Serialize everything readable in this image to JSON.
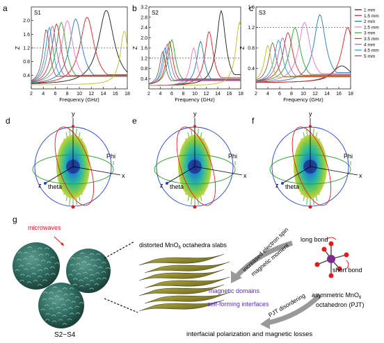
{
  "panel_letters": [
    "a",
    "b",
    "c",
    "d",
    "e",
    "f",
    "g"
  ],
  "colors": [
    "#1a1a1a",
    "#e41a1c",
    "#1f77b4",
    "#e377c2",
    "#2ca02c",
    "#d62728",
    "#9467bd",
    "#1f9bd7",
    "#8c564b",
    "#bcbd22"
  ],
  "chart_data": [
    {
      "type": "line",
      "title": "S1",
      "xlabel": "Frequency (GHz)",
      "ylabel": "Z",
      "xlim": [
        2,
        18
      ],
      "ylim": [
        0,
        2.4
      ],
      "xticks": [
        2,
        4,
        6,
        8,
        10,
        12,
        14,
        16,
        18
      ],
      "xtick_labels": [
        "2",
        "4",
        "6",
        "8",
        "10",
        "12",
        "14",
        "16",
        "18"
      ],
      "yticks": [
        0.4,
        0.8,
        1.2,
        1.6,
        2.0
      ],
      "ytick_labels": [
        "0.4",
        "0.8",
        "1.2",
        "1.6",
        "2.0"
      ],
      "reference_line": 1.2,
      "series": [
        {
          "peak_x": 14.5,
          "peak_y": 2.3,
          "width": 2.0
        },
        {
          "peak_x": 11.3,
          "peak_y": 2.1,
          "width": 1.8
        },
        {
          "peak_x": 9.4,
          "peak_y": 2.05,
          "width": 1.6
        },
        {
          "peak_x": 8.0,
          "peak_y": 2.0,
          "width": 1.5
        },
        {
          "peak_x": 7.0,
          "peak_y": 1.95,
          "width": 1.3
        },
        {
          "peak_x": 6.2,
          "peak_y": 1.9,
          "width": 1.2
        },
        {
          "peak_x": 5.5,
          "peak_y": 1.85,
          "width": 1.1
        },
        {
          "peak_x": 5.0,
          "peak_y": 1.8,
          "width": 1.0
        },
        {
          "peak_x": 4.5,
          "peak_y": 1.75,
          "width": 0.9
        },
        {
          "peak_x": 17.5,
          "peak_y": 1.7,
          "width": 1.0
        }
      ]
    },
    {
      "type": "line",
      "title": "S2",
      "xlabel": "Frequency (GHz)",
      "ylabel": "Z",
      "xlim": [
        2,
        18
      ],
      "ylim": [
        0,
        3.2
      ],
      "xticks": [
        2,
        4,
        6,
        8,
        10,
        12,
        14,
        16,
        18
      ],
      "xtick_labels": [
        "2",
        "4",
        "6",
        "8",
        "10",
        "12",
        "14",
        "16",
        "18"
      ],
      "yticks": [
        0.4,
        0.8,
        1.2,
        1.6,
        2.0,
        2.4,
        2.8,
        3.2
      ],
      "ytick_labels": [
        "0.4",
        "0.8",
        "1.2",
        "1.6",
        "2.0",
        "2.4",
        "2.8",
        "3.2"
      ],
      "reference_line": 1.2,
      "series": [
        {
          "peak_x": 14.6,
          "peak_y": 3.05,
          "width": 1.2
        },
        {
          "peak_x": 12.5,
          "peak_y": 2.25,
          "width": 1.1
        },
        {
          "peak_x": 11.0,
          "peak_y": 1.85,
          "width": 1.0
        },
        {
          "peak_x": 9.8,
          "peak_y": 1.6,
          "width": 0.9
        },
        {
          "peak_x": 6.0,
          "peak_y": 1.92,
          "width": 1.0
        },
        {
          "peak_x": 5.6,
          "peak_y": 1.85,
          "width": 0.9
        },
        {
          "peak_x": 5.2,
          "peak_y": 1.75,
          "width": 0.9
        },
        {
          "peak_x": 4.8,
          "peak_y": 1.6,
          "width": 0.8
        },
        {
          "peak_x": 4.4,
          "peak_y": 1.45,
          "width": 0.8
        },
        {
          "peak_x": 17.8,
          "peak_y": 2.6,
          "width": 1.0
        }
      ]
    },
    {
      "type": "line",
      "title": "S3",
      "xlabel": "Frequency (GHz)",
      "ylabel": "Z",
      "xlim": [
        2,
        18
      ],
      "ylim": [
        0,
        1.6
      ],
      "xticks": [
        2,
        4,
        6,
        8,
        10,
        12,
        14,
        16,
        18
      ],
      "xtick_labels": [
        "2",
        "4",
        "6",
        "8",
        "10",
        "12",
        "14",
        "16",
        "18"
      ],
      "yticks": [
        0.4,
        0.8,
        1.2,
        1.6
      ],
      "ytick_labels": [
        "0.4",
        "0.8",
        "1.2",
        "1.6"
      ],
      "reference_line": 1.2,
      "legend_position": "right",
      "series": [
        {
          "name": "1 mm",
          "peak_x": 16.5,
          "peak_y": 0.45,
          "width": 2.5
        },
        {
          "name": "1.5 mm",
          "peak_x": 17.5,
          "peak_y": 1.2,
          "width": 1.5
        },
        {
          "name": "2 mm",
          "peak_x": 12.8,
          "peak_y": 1.45,
          "width": 1.5
        },
        {
          "name": "2.5 mm",
          "peak_x": 10.2,
          "peak_y": 1.3,
          "width": 1.5
        },
        {
          "name": "3 mm",
          "peak_x": 8.6,
          "peak_y": 1.2,
          "width": 1.4
        },
        {
          "name": "3.5 mm",
          "peak_x": 7.4,
          "peak_y": 1.1,
          "width": 1.3
        },
        {
          "name": "4 mm",
          "peak_x": 6.5,
          "peak_y": 1.0,
          "width": 1.2
        },
        {
          "name": "4.5 mm",
          "peak_x": 5.8,
          "peak_y": 0.95,
          "width": 1.1
        },
        {
          "name": "5 mm",
          "peak_x": 4.8,
          "peak_y": 0.9,
          "width": 1.0
        },
        {
          "name": "",
          "peak_x": 4.0,
          "peak_y": 0.85,
          "width": 0.9
        }
      ]
    }
  ],
  "axes3d_labels": {
    "y": "y",
    "x": "x",
    "z": "z",
    "phi": "Phi",
    "theta": "theta"
  },
  "panel_g": {
    "microwaves": "microwaves",
    "sample_label": "S2~S4",
    "slabs_label": "distorted MnO",
    "slabs_sub": "6",
    "slabs_suffix": " octahedra slabs",
    "spin_line1": "increased electron spin",
    "spin_line2": "magnetic moment",
    "domains": "magnetic domains",
    "interfaces": "self-forming interfaces",
    "pjt": "PJT disordering",
    "long_bond": "long bond",
    "short_bond": "short bond",
    "asym_line1": "asymmetric MnO",
    "asym_sub": "6",
    "asym_line2": "octahedron (PJT)",
    "bottom": "interfacial polarization and magnetic losses"
  }
}
